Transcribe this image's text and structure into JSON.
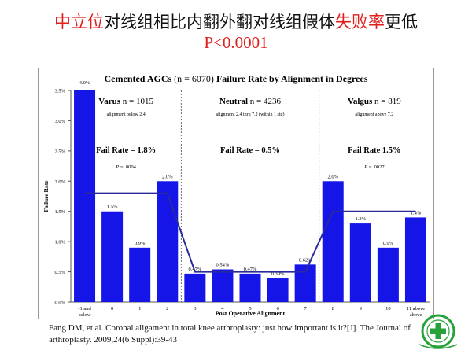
{
  "slide": {
    "title_line1_parts": [
      {
        "text": "中立位",
        "color": "red"
      },
      {
        "text": "对线组相比内翻外翻对线组假体",
        "color": "black"
      },
      {
        "text": "失败率",
        "color": "red"
      },
      {
        "text": "更低",
        "color": "black"
      }
    ],
    "title_line2": "P<0.0001",
    "citation_line1": "Fang DM, et.al. Coronal aligament in total knee arthroplasty: just how important is it?[J]. The Journal of",
    "citation_line2": "arthroplasty. 2009,24(6 Suppl):39-43",
    "colors": {
      "red": "#e01e1e",
      "bar": "#1515e8",
      "line": "#2a2a9a",
      "logo": "#27a23a"
    }
  },
  "chart_data": {
    "type": "bar",
    "title_parts": {
      "bold1": "Cemented AGCs",
      "normal": " (n = 6070) ",
      "bold2": "Failure Rate by Alignment in Degrees"
    },
    "xlabel": "Post Operative Alignment",
    "ylabel": "Failure Rate",
    "ylim": [
      0,
      3.5
    ],
    "yticks": [
      "0.0%",
      "0.5%",
      "1.0%",
      "1.5%",
      "2.0%",
      "2.5%",
      "3.0%",
      "3.5%"
    ],
    "categories": [
      "-1 and below",
      "0",
      "1",
      "2",
      "3",
      "4",
      "5",
      "6",
      "7",
      "8",
      "9",
      "10",
      "11 above above"
    ],
    "category_lines": [
      [
        "-1 and",
        "below"
      ],
      [
        "0"
      ],
      [
        "1"
      ],
      [
        "2"
      ],
      [
        "3"
      ],
      [
        "4"
      ],
      [
        "5"
      ],
      [
        "6"
      ],
      [
        "7"
      ],
      [
        "8"
      ],
      [
        "9"
      ],
      [
        "10"
      ],
      [
        "11 above",
        "above"
      ]
    ],
    "values": [
      4.0,
      1.5,
      0.9,
      2.0,
      0.47,
      0.54,
      0.47,
      0.39,
      0.62,
      2.0,
      1.3,
      0.9,
      1.4
    ],
    "data_labels": [
      "4.0%",
      "1.5%",
      "0.9%",
      "2.0%",
      "0.47%",
      "0.54%",
      "0.47%",
      "0.39%",
      "0.62%",
      "2.0%",
      "1.3%",
      "0.9%",
      "1.4%"
    ],
    "group_averages": [
      1.8,
      1.8,
      1.8,
      1.8,
      0.5,
      0.5,
      0.5,
      0.5,
      0.5,
      1.5,
      1.5,
      1.5,
      1.5
    ],
    "groups": [
      {
        "name": "Varus",
        "n_text": " n = 1015",
        "subtitle": "alignment below 2.4",
        "fail_rate": "Fail Rate = 1.8%",
        "p_label": "P",
        "p_value": " = .0004"
      },
      {
        "name": "Neutral",
        "n_text": " n = 4236",
        "subtitle": "alignment 2.4 thru 7.2 (within 1 std)",
        "fail_rate": "Fail Rate = 0.5%",
        "p_label": "",
        "p_value": ""
      },
      {
        "name": "Valgus",
        "n_text": " n = 819",
        "subtitle": "alignment above 7.2",
        "fail_rate": "Fail Rate 1.5%",
        "p_label": "P",
        "p_value": " = .0027"
      }
    ],
    "grid": false,
    "legend": "none"
  }
}
